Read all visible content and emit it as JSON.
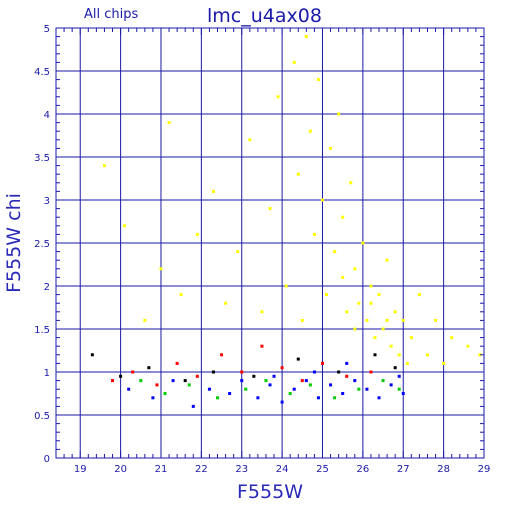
{
  "chart_data": {
    "type": "scatter",
    "title": "lmc_u4ax08",
    "subtitle": "All chips",
    "xlabel": "F555W",
    "ylabel": "F555W chi",
    "xlim": [
      18.4,
      29
    ],
    "ylim": [
      0,
      5
    ],
    "xticks": [
      "19",
      "20",
      "21",
      "22",
      "23",
      "24",
      "25",
      "26",
      "27",
      "28",
      "29"
    ],
    "yticks": [
      "0",
      "0.5",
      "1",
      "1.5",
      "2",
      "2.5",
      "3",
      "3.5",
      "4",
      "4.5",
      "5"
    ],
    "grid": true,
    "series": [
      {
        "color": "#ffff00",
        "points": [
          [
            19.6,
            3.4
          ],
          [
            20.1,
            2.7
          ],
          [
            20.6,
            1.6
          ],
          [
            21.0,
            2.2
          ],
          [
            21.2,
            3.9
          ],
          [
            21.5,
            1.9
          ],
          [
            21.9,
            2.6
          ],
          [
            22.3,
            3.1
          ],
          [
            22.6,
            1.8
          ],
          [
            22.9,
            2.4
          ],
          [
            23.2,
            3.7
          ],
          [
            23.5,
            1.7
          ],
          [
            23.7,
            2.9
          ],
          [
            23.9,
            4.2
          ],
          [
            24.1,
            2.0
          ],
          [
            24.3,
            4.6
          ],
          [
            24.4,
            3.3
          ],
          [
            24.5,
            1.6
          ],
          [
            24.6,
            4.9
          ],
          [
            24.7,
            3.8
          ],
          [
            24.8,
            2.6
          ],
          [
            24.9,
            4.4
          ],
          [
            25.0,
            3.0
          ],
          [
            25.1,
            1.9
          ],
          [
            25.2,
            3.6
          ],
          [
            25.3,
            2.4
          ],
          [
            25.4,
            4.0
          ],
          [
            25.5,
            2.8
          ],
          [
            25.6,
            1.7
          ],
          [
            25.7,
            3.2
          ],
          [
            25.8,
            2.2
          ],
          [
            25.9,
            1.8
          ],
          [
            26.0,
            2.5
          ],
          [
            26.1,
            1.6
          ],
          [
            26.2,
            2.0
          ],
          [
            26.3,
            1.4
          ],
          [
            26.4,
            1.9
          ],
          [
            26.5,
            1.5
          ],
          [
            26.6,
            2.3
          ],
          [
            26.7,
            1.3
          ],
          [
            26.8,
            1.7
          ],
          [
            26.9,
            1.2
          ],
          [
            27.0,
            1.6
          ],
          [
            27.1,
            1.1
          ],
          [
            27.2,
            1.4
          ],
          [
            27.4,
            1.9
          ],
          [
            27.6,
            1.2
          ],
          [
            27.8,
            1.6
          ],
          [
            28.0,
            1.1
          ],
          [
            28.2,
            1.4
          ],
          [
            28.6,
            1.3
          ],
          [
            28.9,
            1.2
          ],
          [
            25.5,
            2.1
          ],
          [
            26.2,
            1.8
          ],
          [
            25.8,
            1.5
          ],
          [
            26.6,
            1.6
          ]
        ]
      },
      {
        "color": "#0000ff",
        "points": [
          [
            20.2,
            0.8
          ],
          [
            20.8,
            0.7
          ],
          [
            21.3,
            0.9
          ],
          [
            21.8,
            0.6
          ],
          [
            22.2,
            0.8
          ],
          [
            22.7,
            0.75
          ],
          [
            23.0,
            0.9
          ],
          [
            23.4,
            0.7
          ],
          [
            23.7,
            0.85
          ],
          [
            24.0,
            0.65
          ],
          [
            24.3,
            0.8
          ],
          [
            24.6,
            0.9
          ],
          [
            24.9,
            0.7
          ],
          [
            25.2,
            0.85
          ],
          [
            25.5,
            0.75
          ],
          [
            25.8,
            0.9
          ],
          [
            26.1,
            0.8
          ],
          [
            26.4,
            0.7
          ],
          [
            26.7,
            0.85
          ],
          [
            27.0,
            0.75
          ],
          [
            26.9,
            0.95
          ],
          [
            25.6,
            1.1
          ],
          [
            24.8,
            1.0
          ],
          [
            23.8,
            0.95
          ]
        ]
      },
      {
        "color": "#00cc00",
        "points": [
          [
            20.5,
            0.9
          ],
          [
            21.1,
            0.75
          ],
          [
            21.7,
            0.85
          ],
          [
            22.4,
            0.7
          ],
          [
            23.1,
            0.8
          ],
          [
            23.6,
            0.9
          ],
          [
            24.2,
            0.75
          ],
          [
            24.7,
            0.85
          ],
          [
            25.3,
            0.7
          ],
          [
            25.9,
            0.8
          ],
          [
            26.5,
            0.9
          ],
          [
            26.9,
            0.8
          ]
        ]
      },
      {
        "color": "#ff0000",
        "points": [
          [
            19.8,
            0.9
          ],
          [
            20.3,
            1.0
          ],
          [
            20.9,
            0.85
          ],
          [
            21.4,
            1.1
          ],
          [
            21.9,
            0.95
          ],
          [
            22.5,
            1.2
          ],
          [
            23.0,
            1.0
          ],
          [
            23.5,
            1.3
          ],
          [
            24.0,
            1.05
          ],
          [
            24.5,
            0.9
          ],
          [
            25.0,
            1.1
          ],
          [
            25.6,
            0.95
          ],
          [
            26.2,
            1.0
          ]
        ]
      },
      {
        "color": "#000000",
        "points": [
          [
            19.3,
            1.2
          ],
          [
            20.0,
            0.95
          ],
          [
            20.7,
            1.05
          ],
          [
            21.6,
            0.9
          ],
          [
            22.3,
            1.0
          ],
          [
            23.3,
            0.95
          ],
          [
            24.4,
            1.15
          ],
          [
            25.4,
            1.0
          ],
          [
            26.3,
            1.2
          ],
          [
            26.8,
            1.05
          ]
        ]
      }
    ]
  }
}
